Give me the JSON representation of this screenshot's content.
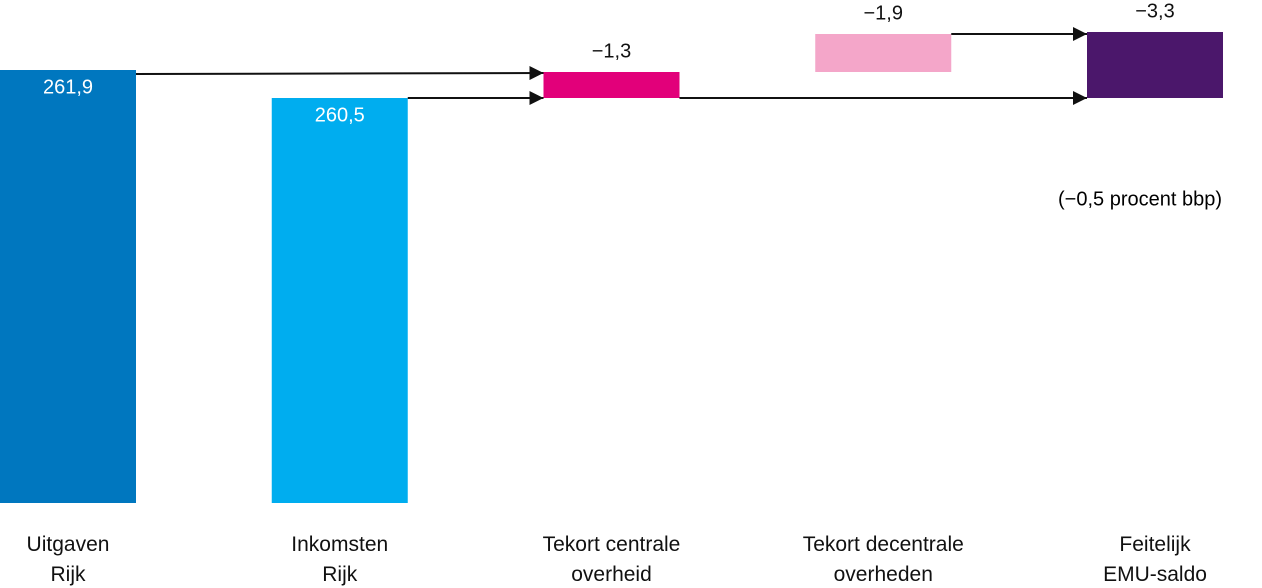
{
  "chart_data": {
    "type": "waterfall",
    "categories": [
      "Uitgaven\nRijk",
      "Inkomsten\nRijk",
      "Tekort centrale\noverheid",
      "Tekort decentrale\noverheden",
      "Feitelijk\nEMU-saldo"
    ],
    "values": [
      261.9,
      260.5,
      -1.3,
      -1.9,
      -3.3
    ],
    "value_labels": [
      "261,9",
      "260,5",
      "−1,3",
      "−1,9",
      "−3,3"
    ],
    "colors": [
      "#0077bf",
      "#00adef",
      "#e2007a",
      "#f4a6c9",
      "#4b176b"
    ],
    "annotation": "(−0,5 procent bbp)",
    "ylim": [
      240,
      264
    ]
  }
}
